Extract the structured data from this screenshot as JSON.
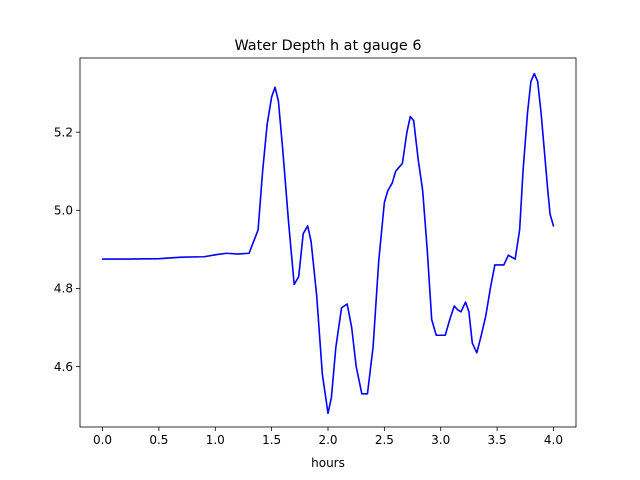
{
  "chart_data": {
    "type": "line",
    "title": "Water Depth h at gauge 6",
    "xlabel": "hours",
    "ylabel": "",
    "xlim": [
      -0.2,
      4.2
    ],
    "ylim": [
      4.445,
      5.39
    ],
    "xticks": [
      0.0,
      0.5,
      1.0,
      1.5,
      2.0,
      2.5,
      3.0,
      3.5,
      4.0
    ],
    "xtick_labels": [
      "0.0",
      "0.5",
      "1.0",
      "1.5",
      "2.0",
      "2.5",
      "3.0",
      "3.5",
      "4.0"
    ],
    "yticks": [
      4.6,
      4.8,
      5.0,
      5.2
    ],
    "ytick_labels": [
      "4.6",
      "4.8",
      "5.0",
      "5.2"
    ],
    "grid": false,
    "series_color": "#0000ff",
    "series": [
      {
        "name": "",
        "x": [
          0.0,
          0.2,
          0.5,
          0.7,
          0.9,
          1.0,
          1.1,
          1.2,
          1.3,
          1.38,
          1.42,
          1.46,
          1.5,
          1.53,
          1.56,
          1.6,
          1.65,
          1.7,
          1.74,
          1.78,
          1.82,
          1.85,
          1.9,
          1.95,
          2.0,
          2.03,
          2.07,
          2.12,
          2.17,
          2.21,
          2.25,
          2.3,
          2.35,
          2.4,
          2.45,
          2.5,
          2.53,
          2.57,
          2.6,
          2.63,
          2.66,
          2.7,
          2.73,
          2.76,
          2.8,
          2.84,
          2.88,
          2.92,
          2.96,
          3.0,
          3.04,
          3.08,
          3.12,
          3.15,
          3.18,
          3.22,
          3.25,
          3.28,
          3.32,
          3.36,
          3.4,
          3.44,
          3.48,
          3.52,
          3.56,
          3.6,
          3.63,
          3.66,
          3.7,
          3.73,
          3.77,
          3.8,
          3.83,
          3.86,
          3.89,
          3.92,
          3.95,
          3.97,
          4.0
        ],
        "y": [
          4.875,
          4.875,
          4.876,
          4.88,
          4.881,
          4.886,
          4.89,
          4.888,
          4.89,
          4.95,
          5.1,
          5.22,
          5.29,
          5.315,
          5.28,
          5.15,
          4.97,
          4.81,
          4.83,
          4.94,
          4.96,
          4.92,
          4.78,
          4.58,
          4.48,
          4.52,
          4.65,
          4.75,
          4.76,
          4.7,
          4.6,
          4.53,
          4.53,
          4.65,
          4.87,
          5.02,
          5.05,
          5.07,
          5.1,
          5.11,
          5.12,
          5.2,
          5.24,
          5.23,
          5.13,
          5.05,
          4.9,
          4.72,
          4.68,
          4.68,
          4.68,
          4.72,
          4.755,
          4.745,
          4.74,
          4.765,
          4.74,
          4.66,
          4.635,
          4.68,
          4.73,
          4.8,
          4.86,
          4.86,
          4.86,
          4.885,
          4.88,
          4.875,
          4.95,
          5.1,
          5.25,
          5.33,
          5.35,
          5.33,
          5.25,
          5.15,
          5.05,
          4.99,
          4.96
        ]
      }
    ]
  }
}
